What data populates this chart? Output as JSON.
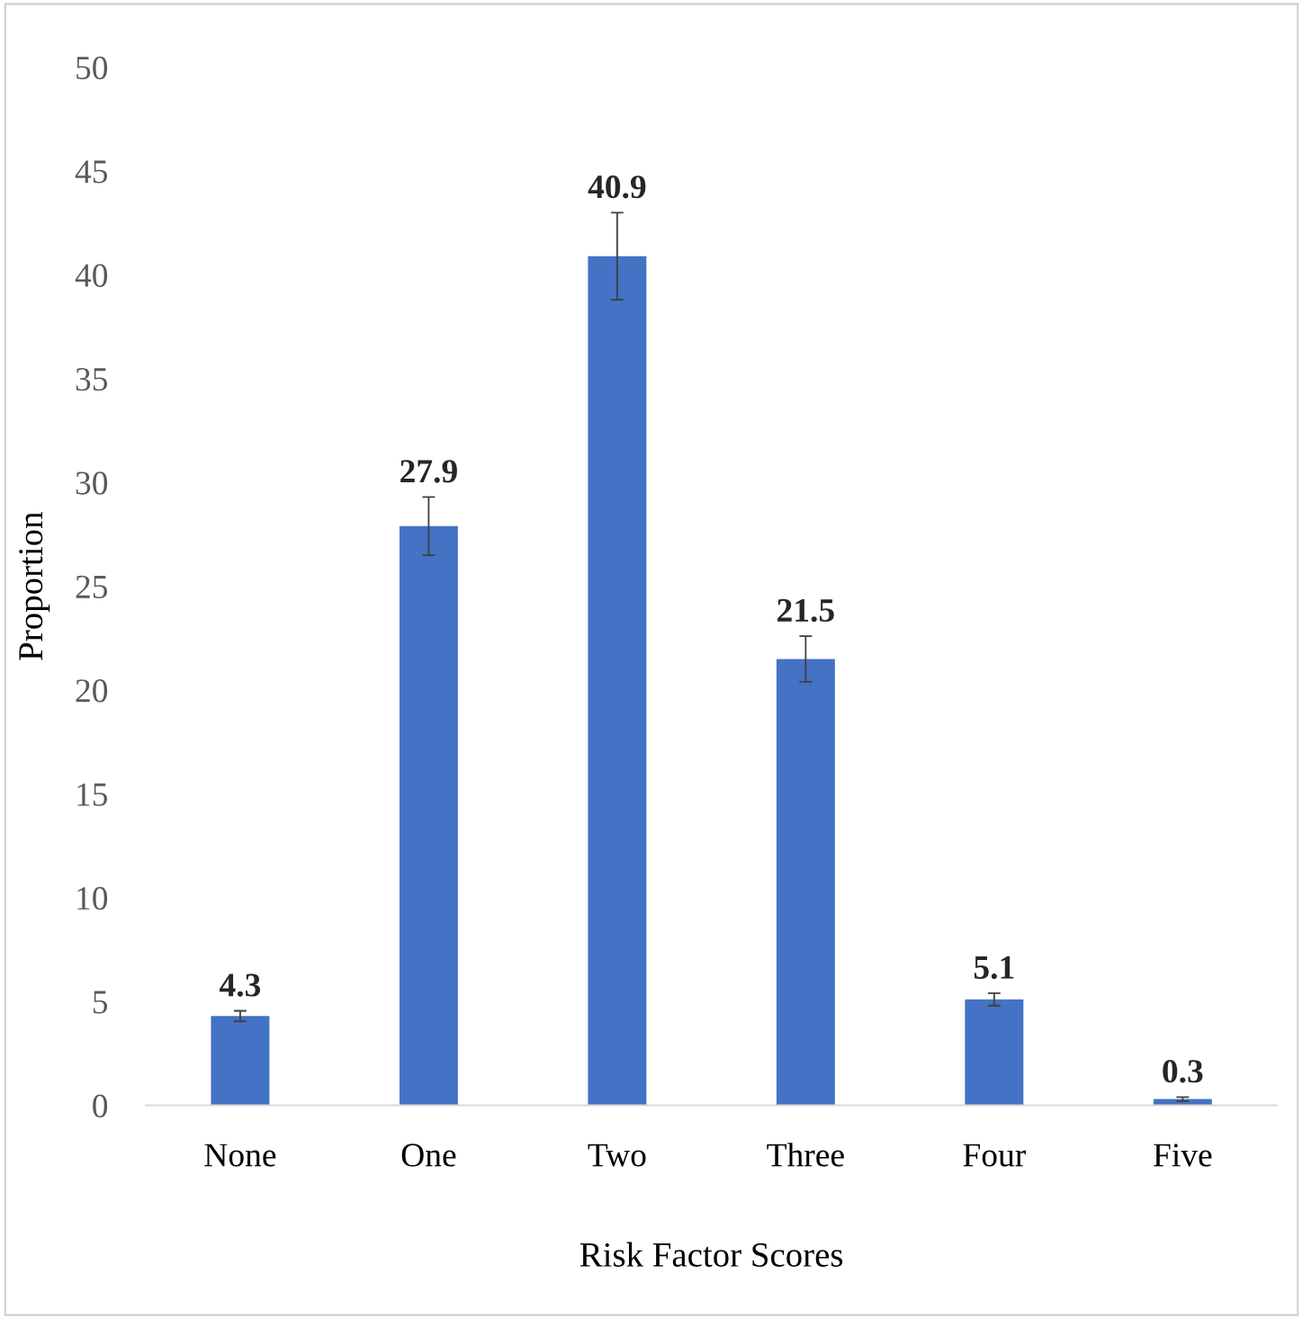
{
  "chart_data": {
    "type": "bar",
    "xlabel": "Risk Factor Scores",
    "ylabel": "Proportion",
    "categories": [
      "None",
      "One",
      "Two",
      "Three",
      "Four",
      "Five"
    ],
    "values": [
      4.3,
      27.9,
      40.9,
      21.5,
      5.1,
      0.3
    ],
    "errors": [
      0.25,
      1.4,
      2.1,
      1.1,
      0.3,
      0.1
    ],
    "color": "#4472c4",
    "ylim": [
      0,
      50
    ],
    "yticks": [
      0,
      5,
      10,
      15,
      20,
      25,
      30,
      35,
      40,
      45,
      50
    ],
    "grid": false,
    "data_labels": true
  }
}
